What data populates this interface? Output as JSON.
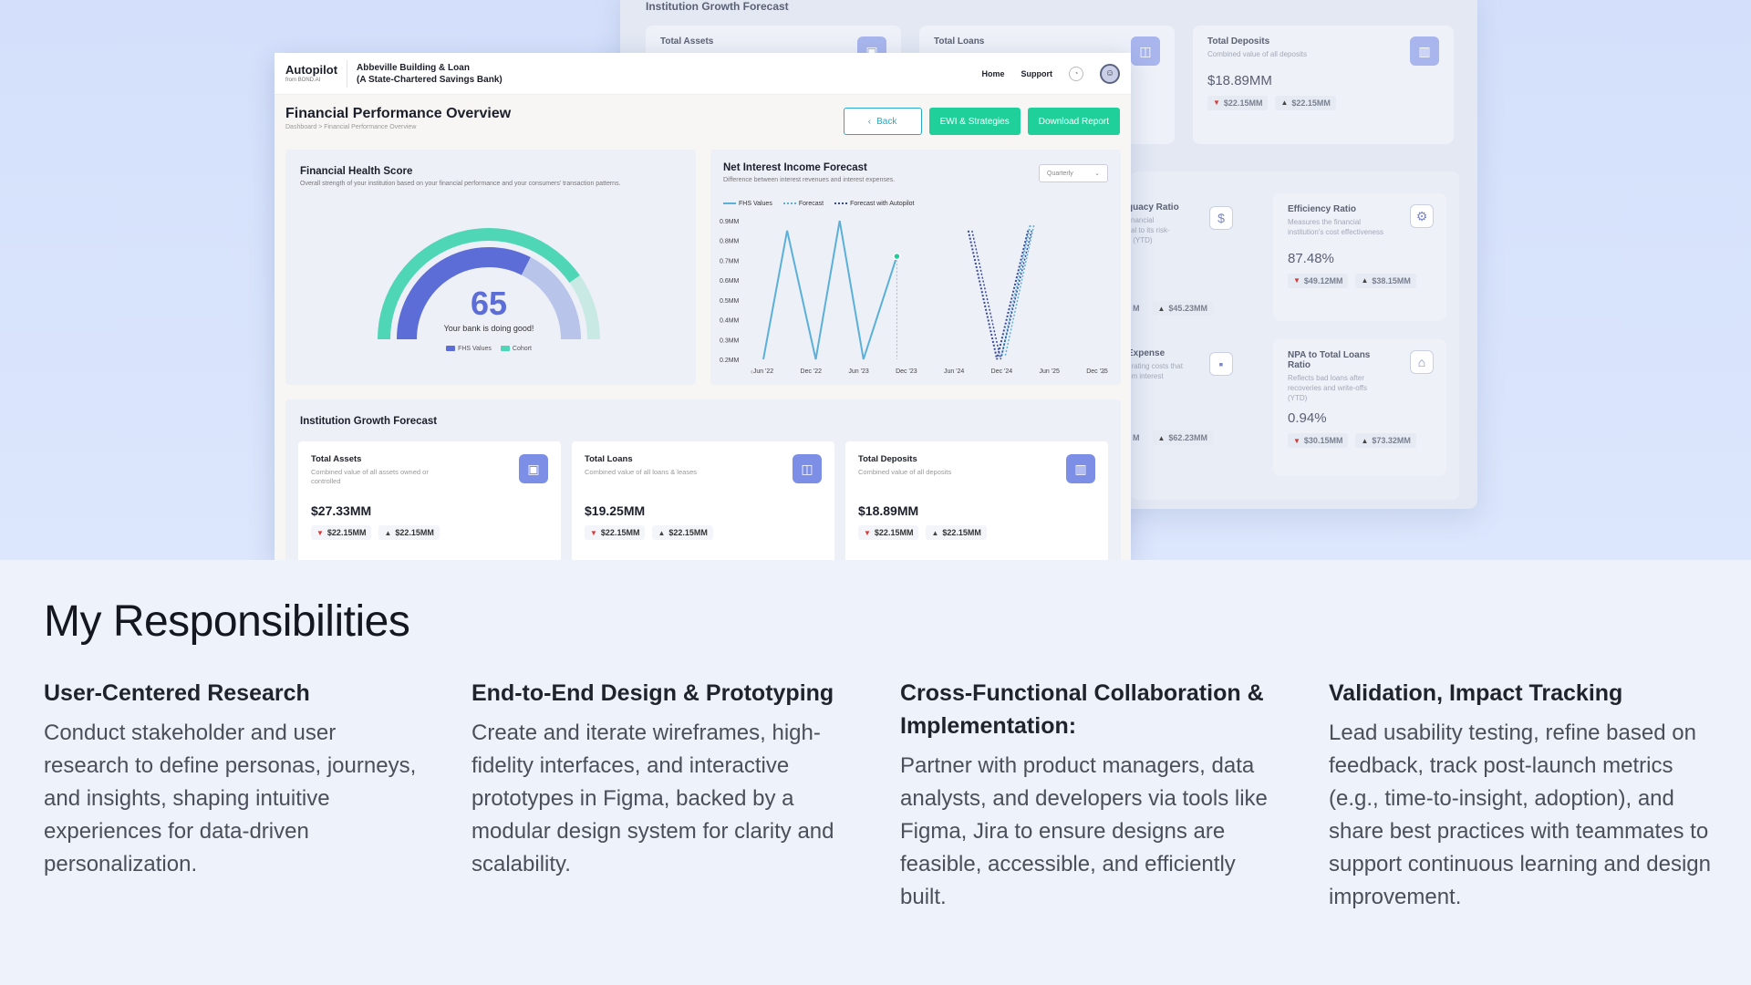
{
  "background_screen": {
    "section_title": "Institution Growth Forecast",
    "cards": [
      {
        "title": "Total Assets"
      },
      {
        "title": "Total Loans"
      },
      {
        "title": "Total Deposits",
        "subtitle": "Combined value of all deposits",
        "value": "$18.89MM",
        "down": "$22.15MM",
        "up": "$22.15MM"
      }
    ],
    "ratios": [
      {
        "title": "quacy Ratio",
        "subtitle": "financial\nital to its risk-\ns (YTD)",
        "down": "M",
        "up": "$45.23MM"
      },
      {
        "title": "Efficiency Ratio",
        "subtitle": "Measures the financial\ninstitution's cost effectiveness",
        "value": "87.48%",
        "down": "$49.12MM",
        "up": "$38.15MM"
      },
      {
        "title": "Expense",
        "subtitle": "erating costs that\nom interest",
        "down": "M",
        "up": "$62.23MM"
      },
      {
        "title": "NPA to Total Loans\nRatio",
        "subtitle": "Reflects bad loans after\nrecoveries and write-offs\n(YTD)",
        "value": "0.94%",
        "down": "$30.15MM",
        "up": "$73.32MM"
      }
    ]
  },
  "app": {
    "brand": "Autopilot",
    "brand_sub": "from BOND.AI",
    "bank_line1": "Abbeville Building & Loan",
    "bank_line2": "(A State-Chartered Savings Bank)",
    "nav": {
      "home": "Home",
      "support": "Support"
    },
    "page_title": "Financial Performance Overview",
    "breadcrumb": "Dashboard > Financial Performance Overview",
    "buttons": {
      "back": "Back",
      "ewi": "EWI & Strategies",
      "download": "Download Report"
    },
    "health": {
      "title": "Financial Health Score",
      "subtitle": "Overall strength of your institution based on your financial performance and your consumers' transaction patterns.",
      "score": "65",
      "score_value": 65,
      "score_max": 100,
      "message": "Your bank is doing good!",
      "legend": [
        "FHS Values",
        "Cohort"
      ]
    },
    "nii": {
      "title": "Net Interest Income Forecast",
      "subtitle": "Difference between interest revenues and interest expenses.",
      "period": "Quarterly"
    },
    "growth": {
      "title": "Institution Growth Forecast",
      "cards": [
        {
          "title": "Total Assets",
          "subtitle": "Combined value of all assets owned or controlled",
          "value": "$27.33MM",
          "down": "$22.15MM",
          "up": "$22.15MM"
        },
        {
          "title": "Total Loans",
          "subtitle": "Combined value of all loans & leases",
          "value": "$19.25MM",
          "down": "$22.15MM",
          "up": "$22.15MM"
        },
        {
          "title": "Total Deposits",
          "subtitle": "Combined value of all deposits",
          "value": "$18.89MM",
          "down": "$22.15MM",
          "up": "$22.15MM"
        }
      ]
    }
  },
  "chart_data": {
    "type": "line",
    "title": "Net Interest Income Forecast",
    "yticks": [
      "0.9MM",
      "0.8MM",
      "0.7MM",
      "0.6MM",
      "0.5MM",
      "0.4MM",
      "0.3MM",
      "0.2MM"
    ],
    "xticks": [
      "Jun '22",
      "Dec '22",
      "Jun '23",
      "Dec '23",
      "Jun '24",
      "Dec '24",
      "Jun '25",
      "Dec '25"
    ],
    "ylim": [
      0.2,
      0.9
    ],
    "series": [
      {
        "name": "FHS Values",
        "color": "#5ab0d8",
        "style": "solid",
        "points": [
          [
            0,
            0.2
          ],
          [
            0.5,
            0.85
          ],
          [
            1.1,
            0.2
          ],
          [
            1.6,
            0.9
          ],
          [
            2.1,
            0.2
          ],
          [
            2.8,
            0.72
          ]
        ]
      },
      {
        "name": "Forecast",
        "color": "#5ab0d8",
        "style": "dotted",
        "points": [
          [
            5.0,
            0.22
          ],
          [
            5.6,
            0.88
          ]
        ]
      },
      {
        "name": "Forecast with Autopilot",
        "color": "#364a9c",
        "style": "dotted",
        "points": [
          [
            4.3,
            0.85
          ],
          [
            4.9,
            0.2
          ],
          [
            5.55,
            0.85
          ]
        ]
      }
    ],
    "highlight": {
      "x": 2.8,
      "y": 0.72
    }
  },
  "responsibilities": {
    "heading": "My Responsibilities",
    "items": [
      {
        "title": "User-Centered Research",
        "body": "Conduct stakeholder and user research to define personas, journeys, and insights, shaping intuitive experiences for data-driven personalization."
      },
      {
        "title": "End-to-End Design & Prototyping",
        "body": "Create and iterate wireframes, high-fidelity interfaces, and interactive prototypes in Figma, backed by a modular design system for clarity and scalability."
      },
      {
        "title": "Cross-Functional Collaboration & Implementation:",
        "body": "Partner with product managers, data analysts, and developers via tools like Figma, Jira to ensure designs are feasible, accessible, and efficiently built."
      },
      {
        "title": "Validation, Impact Tracking",
        "body": "Lead usability testing, refine based on feedback, track post-launch metrics (e.g., time-to-insight, adoption), and share best practices with teammates to support continuous learning and design improvement."
      }
    ]
  },
  "colors": {
    "accent": "#20d09a",
    "gauge_blue": "#5d6dd8",
    "gauge_teal": "#4fd6b6",
    "down": "#d83a3a"
  }
}
